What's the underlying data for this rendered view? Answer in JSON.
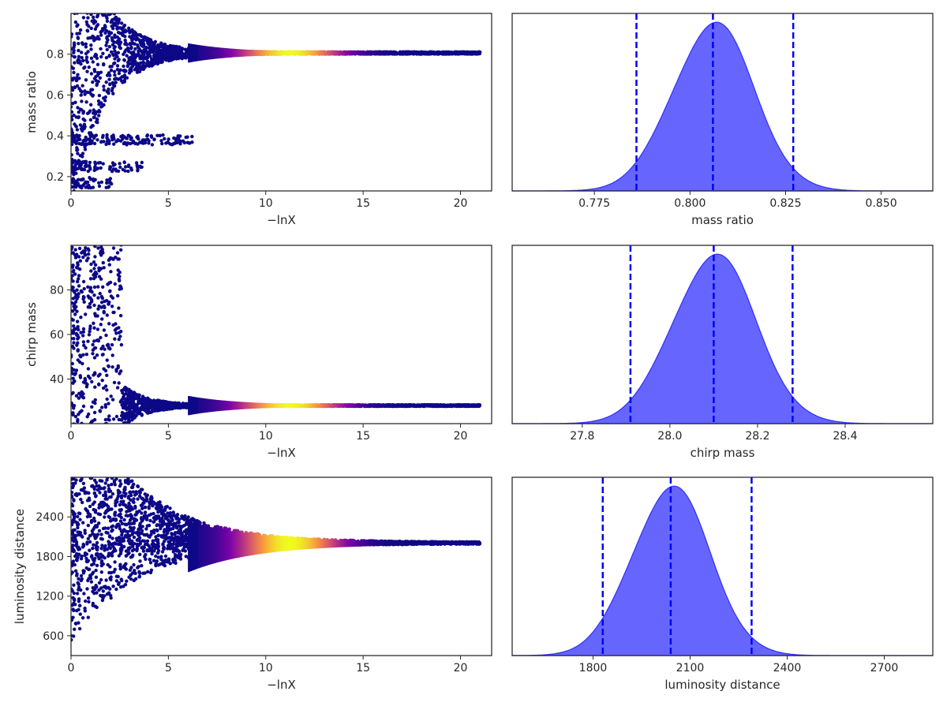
{
  "colors": {
    "trace_low": "#0d0887",
    "trace_mid": "#cc4778",
    "trace_high": "#f0f921",
    "posterior_fill": "#0000ff",
    "quantile_line": "#0000ff"
  },
  "chart_data": [
    {
      "type": "scatter",
      "name": "trace-mass-ratio",
      "xlabel": "−lnX",
      "ylabel": "mass ratio",
      "xlim": [
        0,
        21.6
      ],
      "ylim": [
        0.13,
        1.0
      ],
      "xticks": [
        0,
        5,
        10,
        15,
        20
      ],
      "yticks": [
        0.2,
        0.4,
        0.6,
        0.8
      ],
      "ytick_labels": [
        "0.2",
        "0.4",
        "0.6",
        "0.8"
      ],
      "colormap": "plasma",
      "converged_value": 0.806,
      "weight_peak_x": 11.2
    },
    {
      "type": "area",
      "name": "posterior-mass-ratio",
      "xlabel": "mass ratio",
      "xlim": [
        0.7535,
        0.8635
      ],
      "xticks": [
        0.775,
        0.8,
        0.825,
        0.85
      ],
      "xtick_labels": [
        "0.775",
        "0.800",
        "0.825",
        "0.850"
      ],
      "median": 0.806,
      "sigma": 0.0106,
      "quantiles": [
        0.786,
        0.806,
        0.827
      ],
      "grid": false
    },
    {
      "type": "scatter",
      "name": "trace-chirp-mass",
      "xlabel": "−lnX",
      "ylabel": "chirp mass",
      "xlim": [
        0,
        21.6
      ],
      "ylim": [
        20,
        100
      ],
      "xticks": [
        0,
        5,
        10,
        15,
        20
      ],
      "yticks": [
        40,
        60,
        80
      ],
      "ytick_labels": [
        "40",
        "60",
        "80"
      ],
      "colormap": "plasma",
      "converged_value": 28.1,
      "weight_peak_x": 11.2
    },
    {
      "type": "area",
      "name": "posterior-chirp-mass",
      "xlabel": "chirp mass",
      "xlim": [
        27.64,
        28.6
      ],
      "xticks": [
        27.8,
        28.0,
        28.2,
        28.4
      ],
      "xtick_labels": [
        "27.8",
        "28.0",
        "28.2",
        "28.4"
      ],
      "median": 28.1,
      "sigma": 0.095,
      "quantiles": [
        27.91,
        28.1,
        28.28
      ],
      "grid": false
    },
    {
      "type": "scatter",
      "name": "trace-luminosity-distance",
      "xlabel": "−lnX",
      "ylabel": "luminosity distance",
      "xlim": [
        0,
        21.6
      ],
      "ylim": [
        300,
        3000
      ],
      "xticks": [
        0,
        5,
        10,
        15,
        20
      ],
      "yticks": [
        600,
        1200,
        1800,
        2400
      ],
      "ytick_labels": [
        "600",
        "1200",
        "1800",
        "2400"
      ],
      "colormap": "plasma",
      "converged_value": 2000,
      "weight_peak_x": 11.2
    },
    {
      "type": "area",
      "name": "posterior-luminosity-distance",
      "xlabel": "luminosity distance",
      "xlim": [
        1550,
        2850
      ],
      "xticks": [
        1800,
        2100,
        2400,
        2700
      ],
      "xtick_labels": [
        "1800",
        "2100",
        "2400",
        "2700"
      ],
      "median": 2040,
      "sigma": 120,
      "quantiles": [
        1830,
        2040,
        2290
      ],
      "grid": false
    }
  ]
}
